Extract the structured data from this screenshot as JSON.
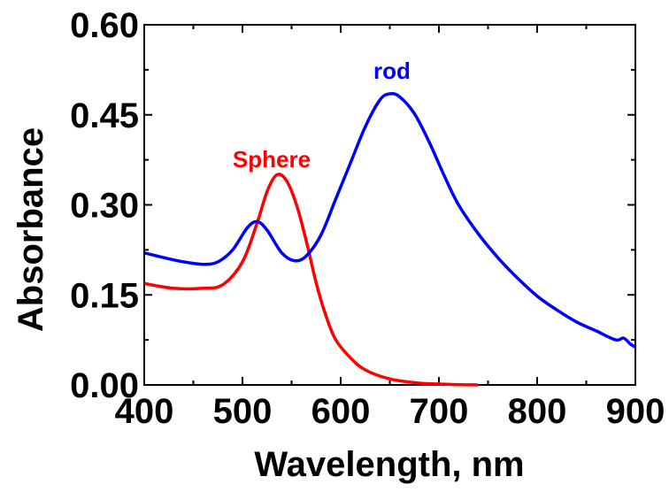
{
  "chart_data": {
    "type": "line",
    "xlabel": "Wavelength, nm",
    "ylabel": "Absorbance",
    "xlim": [
      400,
      900
    ],
    "ylim": [
      0,
      0.6
    ],
    "x_ticks": [
      "400",
      "500",
      "600",
      "700",
      "800",
      "900"
    ],
    "y_ticks": [
      "0.00",
      "0.15",
      "0.30",
      "0.45",
      "0.60"
    ],
    "grid": false,
    "legend": "none",
    "series": [
      {
        "name": "Sphere",
        "color": "#ff0000",
        "label_color": "#ff0000",
        "points": [
          [
            400,
            0.169
          ],
          [
            430,
            0.161
          ],
          [
            460,
            0.161
          ],
          [
            480,
            0.167
          ],
          [
            500,
            0.205
          ],
          [
            515,
            0.27
          ],
          [
            525,
            0.322
          ],
          [
            535,
            0.35
          ],
          [
            545,
            0.34
          ],
          [
            555,
            0.3
          ],
          [
            565,
            0.24
          ],
          [
            575,
            0.17
          ],
          [
            585,
            0.115
          ],
          [
            595,
            0.075
          ],
          [
            610,
            0.045
          ],
          [
            625,
            0.025
          ],
          [
            650,
            0.01
          ],
          [
            680,
            0.003
          ],
          [
            710,
            0.001
          ],
          [
            740,
            0.0
          ]
        ]
      },
      {
        "name": "rod",
        "color": "#0000ff",
        "label_color": "#0000ff",
        "points": [
          [
            400,
            0.22
          ],
          [
            420,
            0.212
          ],
          [
            440,
            0.205
          ],
          [
            460,
            0.201
          ],
          [
            475,
            0.205
          ],
          [
            490,
            0.225
          ],
          [
            505,
            0.262
          ],
          [
            515,
            0.272
          ],
          [
            525,
            0.258
          ],
          [
            540,
            0.22
          ],
          [
            553,
            0.207
          ],
          [
            565,
            0.215
          ],
          [
            580,
            0.25
          ],
          [
            595,
            0.31
          ],
          [
            610,
            0.37
          ],
          [
            625,
            0.43
          ],
          [
            640,
            0.475
          ],
          [
            650,
            0.485
          ],
          [
            660,
            0.48
          ],
          [
            675,
            0.452
          ],
          [
            690,
            0.405
          ],
          [
            705,
            0.35
          ],
          [
            720,
            0.3
          ],
          [
            740,
            0.252
          ],
          [
            760,
            0.212
          ],
          [
            780,
            0.178
          ],
          [
            800,
            0.148
          ],
          [
            820,
            0.125
          ],
          [
            840,
            0.105
          ],
          [
            860,
            0.09
          ],
          [
            880,
            0.075
          ],
          [
            888,
            0.078
          ],
          [
            895,
            0.068
          ],
          [
            900,
            0.063
          ]
        ]
      }
    ]
  }
}
